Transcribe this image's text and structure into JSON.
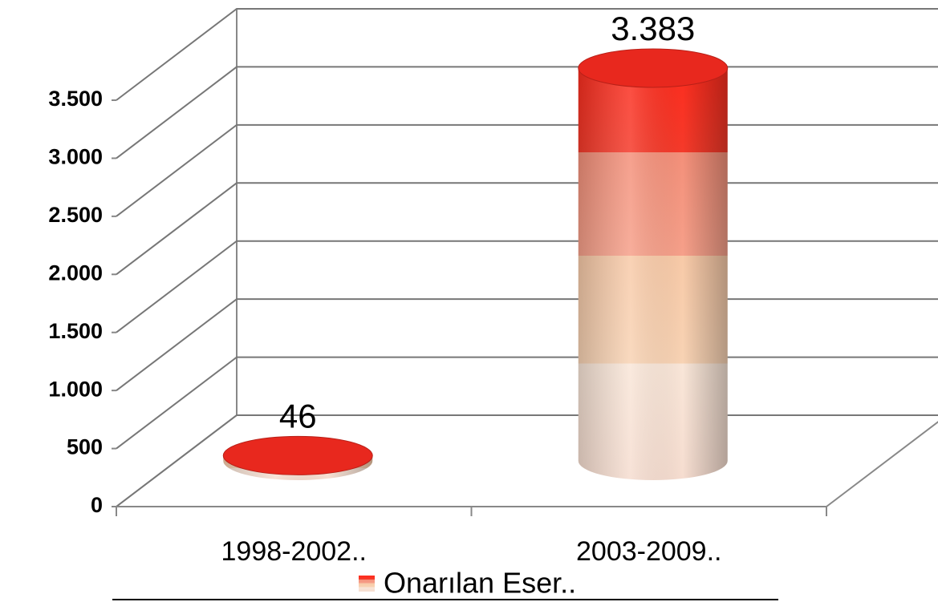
{
  "chart_data": {
    "type": "bar3d",
    "categories": [
      "1998-2002..",
      "2003-2009.."
    ],
    "series": [
      {
        "name": "Onarılan Eser..",
        "color": "#e8281e",
        "values": [
          46,
          3383
        ],
        "value_labels": [
          "46",
          "3.383"
        ]
      }
    ],
    "ylim": [
      0,
      3500
    ],
    "yticks": [
      0,
      500,
      {
        "value": 1000,
        "label": "1.000"
      },
      {
        "value": 1500,
        "label": "1.500"
      },
      {
        "value": 2000,
        "label": "2.000"
      },
      {
        "value": 2500,
        "label": "2.500"
      },
      {
        "value": 3000,
        "label": "3.000"
      },
      {
        "value": 3500,
        "label": "3.500"
      }
    ],
    "grid": true
  }
}
